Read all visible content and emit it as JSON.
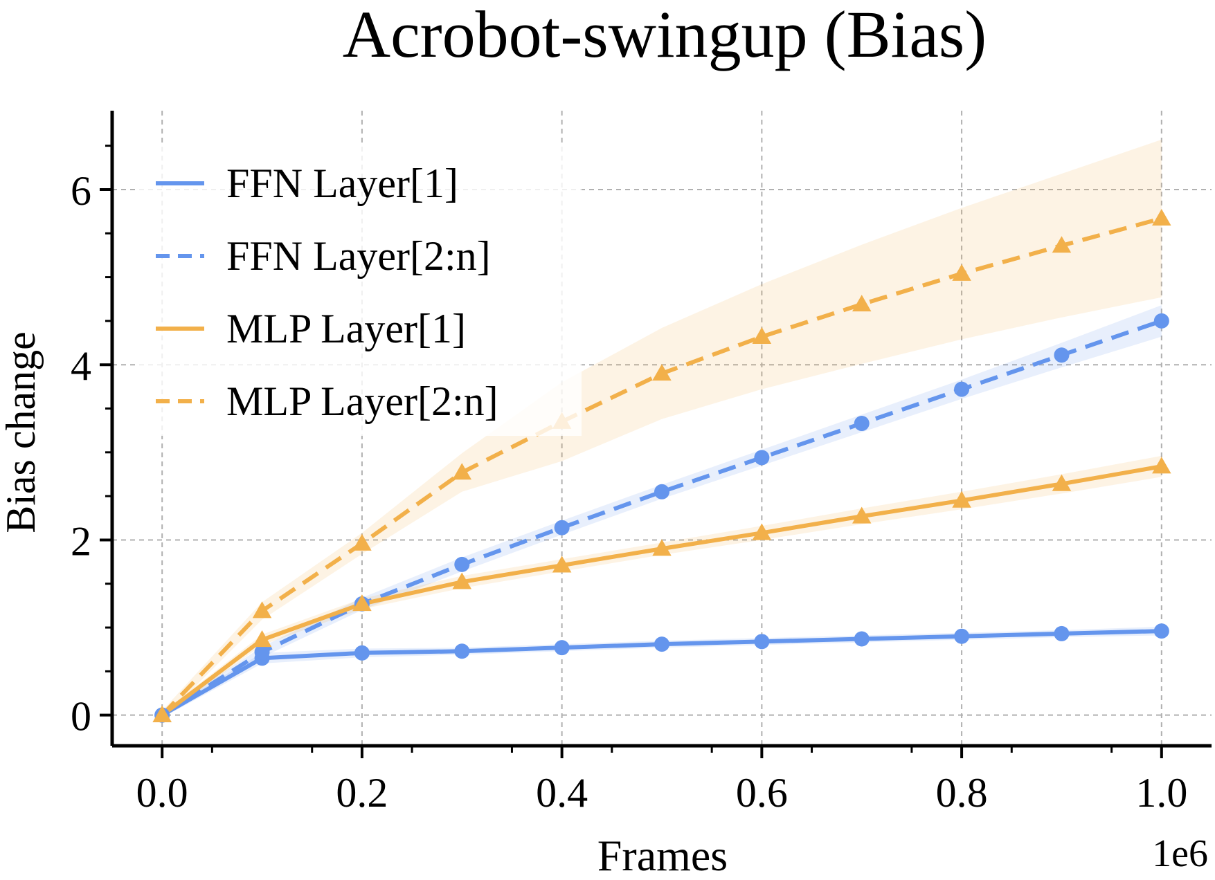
{
  "chart_data": {
    "type": "line",
    "title": "Acrobot-swingup (Bias)",
    "xlabel": "Frames",
    "ylabel": "Bias change",
    "x_offset_label": "1e6",
    "x": [
      0.0,
      0.1,
      0.2,
      0.3,
      0.4,
      0.5,
      0.6,
      0.7,
      0.8,
      0.9,
      1.0
    ],
    "xlim": [
      -0.05,
      1.05
    ],
    "ylim": [
      -0.35,
      6.9
    ],
    "xticks": [
      0.0,
      0.2,
      0.4,
      0.6,
      0.8,
      1.0
    ],
    "xtick_labels": [
      "0.0",
      "0.2",
      "0.4",
      "0.6",
      "0.8",
      "1.0"
    ],
    "yticks": [
      0,
      2,
      4,
      6
    ],
    "ytick_labels": [
      "0",
      "2",
      "4",
      "6"
    ],
    "grid": true,
    "legend_position": "top-left",
    "series": [
      {
        "name": "FFN Layer[1]",
        "color": "#6495ED",
        "linestyle": "solid",
        "marker": "circle",
        "values": [
          0.0,
          0.65,
          0.71,
          0.73,
          0.77,
          0.81,
          0.84,
          0.87,
          0.9,
          0.93,
          0.96
        ],
        "band": [
          0.03,
          0.06,
          0.05,
          0.04,
          0.04,
          0.04,
          0.04,
          0.04,
          0.04,
          0.04,
          0.05
        ]
      },
      {
        "name": "FFN Layer[2:n]",
        "color": "#6495ED",
        "linestyle": "dashed",
        "marker": "circle",
        "values": [
          0.0,
          0.72,
          1.27,
          1.72,
          2.14,
          2.55,
          2.94,
          3.33,
          3.72,
          4.11,
          4.5
        ],
        "band": [
          0.03,
          0.06,
          0.07,
          0.08,
          0.08,
          0.08,
          0.09,
          0.1,
          0.11,
          0.14,
          0.18
        ]
      },
      {
        "name": "MLP Layer[1]",
        "color": "#F2B04A",
        "linestyle": "solid",
        "marker": "triangle",
        "values": [
          0.0,
          0.86,
          1.27,
          1.52,
          1.71,
          1.9,
          2.08,
          2.27,
          2.45,
          2.64,
          2.84
        ],
        "band": [
          0.03,
          0.06,
          0.06,
          0.07,
          0.07,
          0.07,
          0.08,
          0.09,
          0.1,
          0.11,
          0.12
        ]
      },
      {
        "name": "MLP Layer[2:n]",
        "color": "#F2B04A",
        "linestyle": "dashed",
        "marker": "triangle",
        "values": [
          0.0,
          1.19,
          1.96,
          2.77,
          3.35,
          3.9,
          4.32,
          4.69,
          5.04,
          5.36,
          5.67
        ],
        "band": [
          0.05,
          0.1,
          0.12,
          0.22,
          0.45,
          0.52,
          0.6,
          0.68,
          0.75,
          0.82,
          0.9
        ]
      }
    ]
  }
}
